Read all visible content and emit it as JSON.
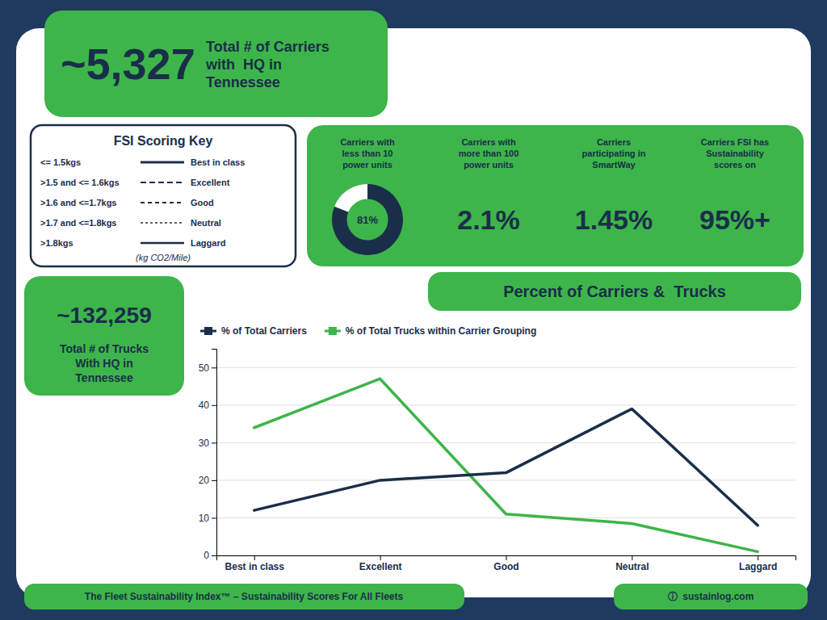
{
  "chart_data": [
    {
      "type": "line",
      "title": "Percent of Carriers &  Trucks",
      "categories": [
        "Best in class",
        "Excellent",
        "Good",
        "Neutral",
        "Laggard"
      ],
      "series": [
        {
          "name": "% of Total Carriers",
          "color": "#1a2e4a",
          "values": [
            12,
            20,
            22,
            39,
            8
          ]
        },
        {
          "name": "% of Total Trucks within Carrier Grouping",
          "color": "#3db54a",
          "values": [
            34,
            47,
            11,
            8.5,
            1
          ]
        }
      ],
      "ylim": [
        0,
        55
      ],
      "yticks": [
        0,
        10,
        20,
        30,
        40,
        50
      ],
      "grid": true,
      "legend": "upper left"
    },
    {
      "type": "pie",
      "title": "Carriers with\nless than 10\npower units",
      "values": [
        81,
        19
      ],
      "colors": [
        "#1a2e4a",
        "#ffffff"
      ],
      "annotations": [
        "81%"
      ]
    }
  ],
  "page": {
    "title_carriers": "~5,327",
    "title_carriers_sub": "Total # of Carriers\nwith  HQ in\nTennessee",
    "title_trucks": "~132,259",
    "title_trucks_sub": "Total # of Trucks\nWith HQ in\nTennessee",
    "fsi_key": {
      "title": "FSI Scoring Key",
      "ranges": [
        "<= 1.5kgs",
        ">1.5 and <= 1.6kgs",
        ">1.6 and <=1.7kgs",
        ">1.7 and <=1.8kgs",
        ">1.8kgs"
      ],
      "labels": [
        "Best in class",
        "Excellent",
        "Good",
        "Neutral",
        "Laggard"
      ],
      "unit": "(kg CO2/Mile)"
    },
    "stats": [
      {
        "label": "Carriers with\nmore than 100\npower units",
        "value": "2.1%"
      },
      {
        "label": "Carriers\nparticipating in\nSmartWay",
        "value": "1.45%"
      },
      {
        "label": "Carriers FSI has\nSustainability\nscores on",
        "value": "95%+"
      }
    ],
    "footer_left": "The Fleet Sustainability Index™ – Sustainability Scores For All Fleets",
    "footer_right": "ⓘ  sustainlog.com"
  }
}
